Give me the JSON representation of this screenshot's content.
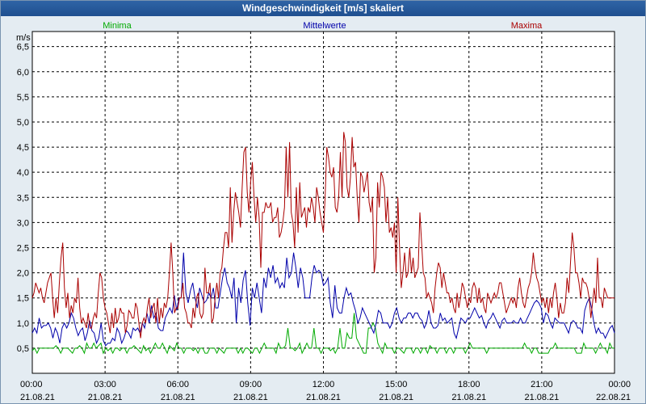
{
  "window": {
    "title": "Windgeschwindigkeit [m/s] skaliert"
  },
  "colors": {
    "min": "#00aa00",
    "mean": "#0000aa",
    "max": "#aa0000",
    "grid": "#000000",
    "plot_bg": "#ffffff"
  },
  "chart_data": {
    "type": "line",
    "title": "Windgeschwindigkeit [m/s] skaliert",
    "ylabel": "m/s",
    "xlabel": "",
    "ylim": [
      0,
      6.8
    ],
    "xlim_hours": [
      0,
      24
    ],
    "yticks": [
      "0,5",
      "1,0",
      "1,5",
      "2,0",
      "2,5",
      "3,0",
      "3,5",
      "4,0",
      "4,5",
      "5,0",
      "5,5",
      "6,0",
      "6,5"
    ],
    "xticks": [
      {
        "time": "00:00",
        "date": "21.08.21"
      },
      {
        "time": "03:00",
        "date": "21.08.21"
      },
      {
        "time": "06:00",
        "date": "21.08.21"
      },
      {
        "time": "09:00",
        "date": "21.08.21"
      },
      {
        "time": "12:00",
        "date": "21.08.21"
      },
      {
        "time": "15:00",
        "date": "21.08.21"
      },
      {
        "time": "18:00",
        "date": "21.08.21"
      },
      {
        "time": "21:00",
        "date": "21.08.21"
      },
      {
        "time": "00:00",
        "date": "22.08.21"
      }
    ],
    "grid": true,
    "legend_position": "top",
    "sample_interval_hours": 0.16667,
    "series": [
      {
        "name": "Minima",
        "key": "min",
        "values": [
          0.45,
          0.5,
          0.4,
          0.5,
          0.5,
          0.5,
          0.5,
          0.5,
          0.5,
          0.5,
          0.55,
          0.5,
          0.4,
          0.5,
          0.5,
          0.5,
          0.45,
          0.4,
          0.5,
          0.5,
          0.55,
          0.5,
          0.4,
          0.6,
          0.5,
          0.5,
          0.6,
          0.5,
          0.55,
          0.6,
          0.4,
          0.5,
          0.45,
          0.5,
          0.4,
          0.5,
          0.5,
          0.45,
          0.5,
          0.5,
          0.4,
          0.5,
          0.5,
          0.55,
          0.5,
          0.45,
          0.4,
          0.55,
          0.45,
          0.5,
          0.4,
          0.5,
          0.6,
          0.5,
          0.5,
          0.6,
          0.5,
          0.4,
          0.55,
          0.5,
          0.45,
          0.6,
          0.5,
          0.5,
          0.4,
          0.5,
          0.5,
          0.5,
          0.45,
          0.5,
          0.4,
          0.5,
          0.5,
          0.4,
          0.4,
          0.5,
          0.5,
          0.5,
          0.4,
          0.5,
          0.45,
          0.4,
          0.5,
          0.5,
          0.5,
          0.5,
          0.5,
          0.4,
          0.5,
          0.4,
          0.5,
          0.5,
          0.45,
          0.4,
          0.5,
          0.5,
          0.4,
          0.5,
          0.6,
          0.5,
          0.5,
          0.5,
          0.5,
          0.4,
          0.6,
          0.5,
          0.5,
          0.55,
          0.9,
          0.5,
          0.5,
          0.45,
          0.5,
          0.6,
          0.4,
          0.5,
          0.6,
          0.5,
          0.5,
          0.9,
          0.5,
          0.5,
          0.4,
          0.5,
          0.5,
          0.5,
          0.45,
          0.5,
          0.4,
          0.5,
          0.9,
          0.5,
          0.5,
          0.8,
          0.7,
          0.7,
          1.2,
          0.7,
          0.6,
          0.5,
          0.4,
          0.4,
          0.9,
          0.9,
          1.0,
          0.9,
          0.6,
          0.5,
          0.4,
          0.6,
          0.5,
          0.5,
          0.5,
          0.4,
          0.5,
          0.5,
          0.45,
          0.4,
          0.5,
          0.5,
          0.5,
          0.4,
          0.5,
          0.5,
          0.4,
          0.5,
          0.5,
          0.4,
          0.55,
          0.5,
          0.5,
          0.4,
          0.5,
          0.5,
          0.5,
          0.4,
          0.5,
          0.5,
          0.4,
          0.5,
          0.5,
          0.5,
          0.5,
          0.4,
          0.5,
          0.6,
          0.5,
          0.5,
          0.5,
          0.5,
          0.5,
          0.5,
          0.4,
          0.5,
          0.5,
          0.5,
          0.5,
          0.5,
          0.5,
          0.5,
          0.5,
          0.5,
          0.5,
          0.5,
          0.5,
          0.5,
          0.5,
          0.5,
          0.6,
          0.5,
          0.5,
          0.4,
          0.5,
          0.5,
          0.4,
          0.4,
          0.4,
          0.4,
          0.4,
          0.5,
          0.5,
          0.6,
          0.5,
          0.5,
          0.5,
          0.5,
          0.5,
          0.5,
          0.5,
          0.5,
          0.4,
          0.4,
          0.4,
          0.6,
          0.5,
          0.5,
          0.5,
          0.5,
          0.4,
          0.5,
          0.6,
          0.5,
          0.5,
          0.4,
          0.6,
          0.5,
          0.5
        ]
      },
      {
        "name": "Mittelwerte",
        "key": "mean",
        "values": [
          0.8,
          0.9,
          0.8,
          1.1,
          0.9,
          0.95,
          0.95,
          1.0,
          0.9,
          0.7,
          0.9,
          0.8,
          0.6,
          0.9,
          1.0,
          0.9,
          1.0,
          1.2,
          1.1,
          0.9,
          0.75,
          0.85,
          0.9,
          0.65,
          0.8,
          1.05,
          0.85,
          0.8,
          0.6,
          0.7,
          1.0,
          0.65,
          0.55,
          0.6,
          0.6,
          0.7,
          0.65,
          0.9,
          0.8,
          0.6,
          0.7,
          0.85,
          0.8,
          0.7,
          0.9,
          0.85,
          0.9,
          0.8,
          1.0,
          0.9,
          1.2,
          1.0,
          1.35,
          1.1,
          1.2,
          0.9,
          0.85,
          0.85,
          1.1,
          1.2,
          1.3,
          1.2,
          1.55,
          1.25,
          1.5,
          1.5,
          2.4,
          1.6,
          1.4,
          1.65,
          1.8,
          1.5,
          1.3,
          1.7,
          1.55,
          1.4,
          1.45,
          1.6,
          1.5,
          1.7,
          1.3,
          1.3,
          1.6,
          1.9,
          2.1,
          1.8,
          1.7,
          1.5,
          1.9,
          1.0,
          1.7,
          1.4,
          1.85,
          2.05,
          1.4,
          0.95,
          1.7,
          1.5,
          1.8,
          1.5,
          1.2,
          1.9,
          1.7,
          2.1,
          1.9,
          2.15,
          1.8,
          1.9,
          1.7,
          1.8,
          1.7,
          2.3,
          1.9,
          2.0,
          2.4,
          2.1,
          1.7,
          2.1,
          1.9,
          1.5,
          1.5,
          1.5,
          1.9,
          2.15,
          2.0,
          2.05,
          2.0,
          1.75,
          1.8,
          1.9,
          1.4,
          1.1,
          1.75,
          1.3,
          1.2,
          1.2,
          1.5,
          1.7,
          1.55,
          1.6,
          1.4,
          1.25,
          1.0,
          1.1,
          1.3,
          1.2,
          1.1,
          1.0,
          0.9,
          0.8,
          1.0,
          1.25,
          1.2,
          1.0,
          1.0,
          1.0,
          0.9,
          1.0,
          1.2,
          1.3,
          1.1,
          1.0,
          1.1,
          1.1,
          1.2,
          1.2,
          1.1,
          1.2,
          1.2,
          1.1,
          1.05,
          0.9,
          1.0,
          1.25,
          1.0,
          0.9,
          0.9,
          0.95,
          1.2,
          1.05,
          1.1,
          1.0,
          1.05,
          1.1,
          0.8,
          0.7,
          0.9,
          1.1,
          1.05,
          1.0,
          1.1,
          1.1,
          1.2,
          1.3,
          1.2,
          1.1,
          1.15,
          1.0,
          0.9,
          1.05,
          1.1,
          1.2,
          1.1,
          1.0,
          0.9,
          1.05,
          1.1,
          1.0,
          1.0,
          1.0,
          1.05,
          1.0,
          1.0,
          1.1,
          1.0,
          1.0,
          1.1,
          1.2,
          1.3,
          1.4,
          1.45,
          1.4,
          1.3,
          1.0,
          1.2,
          1.15,
          1.0,
          0.9,
          1.1,
          1.05,
          1.0,
          1.0,
          1.0,
          0.9,
          0.8,
          1.0,
          1.05,
          1.0,
          0.9,
          0.9,
          0.8,
          1.25,
          1.4,
          1.5,
          1.3,
          1.0,
          0.8,
          0.9,
          0.8,
          0.8,
          0.7,
          0.8,
          0.9,
          0.95,
          0.8
        ]
      },
      {
        "name": "Maxima",
        "key": "max",
        "values": [
          1.5,
          1.6,
          1.8,
          1.7,
          1.6,
          1.7,
          1.5,
          1.4,
          1.6,
          1.8,
          1.9,
          2.0,
          1.5,
          1.1,
          1.5,
          1.2,
          1.8,
          2.3,
          2.6,
          1.7,
          1.3,
          1.6,
          1.1,
          1.35,
          1.2,
          1.5,
          1.4,
          1.9,
          1.3,
          1.0,
          1.1,
          1.0,
          0.9,
          1.2,
          0.9,
          0.9,
          1.1,
          1.2,
          1.1,
          1.6,
          2.0,
          1.9,
          1.5,
          1.3,
          1.2,
          1.0,
          0.8,
          1.2,
          0.9,
          1.3,
          1.0,
          1.1,
          1.3,
          1.2,
          1.2,
          0.8,
          0.95,
          1.25,
          1.2,
          1.1,
          1.1,
          1.4,
          1.3,
          1.0,
          0.7,
          1.0,
          1.1,
          1.0,
          1.3,
          1.5,
          1.1,
          1.3,
          1.4,
          1.0,
          1.5,
          1.0,
          1.3,
          1.1,
          1.4,
          1.3,
          1.5,
          2.0,
          2.6,
          2.0,
          1.2,
          1.3,
          1.3,
          1.5,
          1.5,
          1.8,
          1.3,
          1.2,
          1.0,
          1.0,
          0.9,
          1.3,
          1.1,
          1.5,
          1.6,
          1.2,
          1.1,
          1.2,
          2.1,
          1.6,
          1.6,
          1.8,
          1.0,
          1.1,
          1.5,
          1.8,
          1.5,
          2.0,
          2.1,
          2.5,
          2.8,
          2.8,
          2.5,
          3.7,
          2.6,
          3.2,
          3.6,
          3.4,
          3.2,
          2.9,
          3.7,
          4.4,
          4.5,
          3.6,
          3.2,
          3.8,
          4.2,
          3.5,
          3.0,
          3.5,
          3.1,
          2.1,
          3.2,
          3.2,
          3.4,
          3.3,
          3.3,
          3.4,
          3.0,
          3.1,
          3.1,
          3.3,
          2.7,
          2.8,
          3.0,
          3.3,
          4.5,
          3.5,
          4.6,
          3.2,
          3.0,
          2.5,
          3.7,
          2.8,
          3.8,
          3.1,
          3.2,
          3.3,
          2.9,
          3.3,
          3.2,
          3.5,
          3.3,
          3.0,
          3.7,
          3.5,
          3.2,
          3.0,
          2.8,
          3.5,
          4.5,
          4.3,
          4.0,
          3.9,
          4.1,
          3.3,
          3.2,
          3.5,
          4.4,
          3.5,
          4.8,
          4.6,
          3.7,
          3.5,
          3.9,
          4.7,
          4.1,
          4.2,
          3.5,
          3.0,
          4.0,
          3.9,
          3.6,
          3.8,
          4.0,
          3.4,
          3.2,
          3.5,
          2.0,
          2.3,
          3.8,
          3.3,
          4.0,
          3.9,
          3.7,
          3.0,
          3.5,
          2.8,
          2.9,
          2.7,
          3.0,
          2.0,
          3.5,
          2.5,
          1.7,
          2.0,
          2.4,
          1.9,
          2.0,
          2.5,
          2.0,
          2.3,
          1.9,
          2.0,
          2.1,
          3.2,
          2.6,
          2.0,
          1.9,
          1.5,
          1.6,
          1.5,
          1.4,
          1.2,
          1.7,
          2.0,
          2.2,
          2.1,
          1.7,
          2.0,
          1.8,
          1.6,
          1.6,
          1.4,
          1.5,
          1.3,
          1.2,
          1.6,
          1.3,
          1.5,
          1.8,
          1.7,
          1.5,
          1.3,
          1.5,
          1.4,
          1.7,
          1.8,
          1.7,
          1.4,
          1.7,
          1.4,
          1.5,
          1.3,
          1.2,
          1.6,
          1.5,
          1.4,
          1.5,
          1.6,
          1.5,
          1.6,
          1.8,
          1.8,
          1.6,
          1.4,
          1.2,
          1.3,
          1.4,
          1.5,
          1.4,
          1.5,
          1.3,
          1.7,
          1.9,
          1.6,
          1.4,
          1.3,
          1.5,
          1.7,
          1.8,
          2.0,
          2.4,
          2.1,
          1.9,
          1.8,
          1.6,
          1.4,
          1.5,
          1.3,
          1.5,
          1.2,
          1.5,
          1.3,
          1.6,
          1.8,
          1.5,
          1.1,
          1.4,
          1.2,
          1.2,
          1.4,
          1.9,
          1.6,
          2.2,
          2.8,
          2.5,
          2.0,
          2.0,
          1.8,
          1.5,
          1.9,
          1.8,
          1.8,
          1.7,
          1.5,
          1.1,
          1.4,
          1.7,
          1.4,
          2.3,
          1.5,
          1.5,
          1.3,
          1.7,
          1.6,
          1.5,
          1.5,
          1.5,
          1.5,
          1.5
        ]
      }
    ]
  }
}
